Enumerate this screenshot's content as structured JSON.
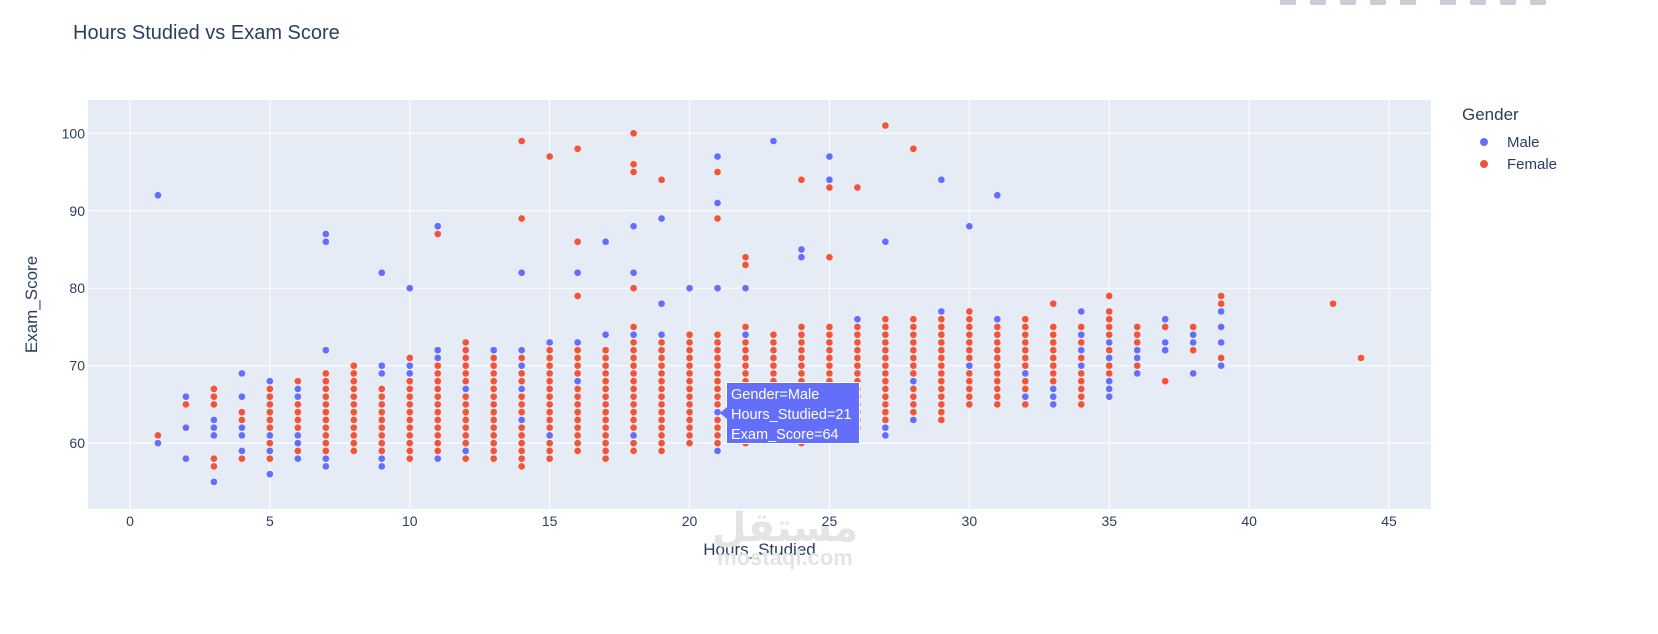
{
  "chart_data": {
    "type": "scatter",
    "title": "Hours Studied vs Exam Score",
    "xlabel": "Hours_Studied",
    "ylabel": "Exam_Score",
    "xlim": [
      -1.5,
      46.5
    ],
    "ylim": [
      51.5,
      104.3
    ],
    "xticks": [
      0,
      5,
      10,
      15,
      20,
      25,
      30,
      35,
      40,
      45
    ],
    "yticks": [
      60,
      70,
      80,
      90,
      100
    ],
    "grid": true,
    "legend_title": "Gender",
    "legend_position": "top-right",
    "series": [
      {
        "name": "Male",
        "color": "#636efa",
        "points": [
          [
            1,
            92
          ],
          [
            1,
            60
          ],
          [
            2,
            66
          ],
          [
            2,
            62
          ],
          [
            2,
            58
          ],
          [
            3,
            63
          ],
          [
            3,
            62
          ],
          [
            3,
            61
          ],
          [
            3,
            55
          ],
          [
            4,
            69
          ],
          [
            4,
            66
          ],
          [
            4,
            62
          ],
          [
            4,
            61
          ],
          [
            4,
            59
          ],
          [
            5,
            68
          ],
          [
            5,
            61
          ],
          [
            5,
            59
          ],
          [
            5,
            56
          ],
          [
            6,
            67
          ],
          [
            6,
            66
          ],
          [
            6,
            61
          ],
          [
            6,
            60
          ],
          [
            6,
            58
          ],
          [
            7,
            87
          ],
          [
            7,
            86
          ],
          [
            7,
            72
          ],
          [
            7,
            58
          ],
          [
            7,
            57
          ],
          [
            9,
            82
          ],
          [
            9,
            70
          ],
          [
            9,
            69
          ],
          [
            9,
            58
          ],
          [
            9,
            57
          ],
          [
            10,
            80
          ],
          [
            10,
            70
          ],
          [
            10,
            69
          ],
          [
            11,
            88
          ],
          [
            11,
            72
          ],
          [
            11,
            71
          ],
          [
            11,
            58
          ],
          [
            12,
            67
          ],
          [
            12,
            59
          ],
          [
            13,
            72
          ],
          [
            14,
            82
          ],
          [
            14,
            72
          ],
          [
            14,
            70
          ],
          [
            14,
            67
          ],
          [
            14,
            63
          ],
          [
            15,
            73
          ],
          [
            15,
            61
          ],
          [
            16,
            82
          ],
          [
            16,
            73
          ],
          [
            16,
            68
          ],
          [
            17,
            86
          ],
          [
            17,
            74
          ],
          [
            18,
            88
          ],
          [
            18,
            82
          ],
          [
            18,
            74
          ],
          [
            18,
            61
          ],
          [
            19,
            89
          ],
          [
            19,
            78
          ],
          [
            19,
            74
          ],
          [
            20,
            80
          ],
          [
            21,
            97
          ],
          [
            21,
            91
          ],
          [
            21,
            80
          ],
          [
            21,
            59
          ],
          [
            22,
            80
          ],
          [
            22,
            74
          ],
          [
            22,
            62
          ],
          [
            23,
            99
          ],
          [
            24,
            85
          ],
          [
            24,
            84
          ],
          [
            25,
            97
          ],
          [
            25,
            94
          ],
          [
            26,
            76
          ],
          [
            27,
            86
          ],
          [
            27,
            62
          ],
          [
            27,
            61
          ],
          [
            28,
            68
          ],
          [
            28,
            63
          ],
          [
            29,
            94
          ],
          [
            29,
            77
          ],
          [
            30,
            88
          ],
          [
            30,
            70
          ],
          [
            31,
            92
          ],
          [
            31,
            76
          ],
          [
            32,
            69
          ],
          [
            32,
            66
          ],
          [
            33,
            67
          ],
          [
            33,
            66
          ],
          [
            33,
            65
          ],
          [
            34,
            77
          ],
          [
            34,
            74
          ],
          [
            34,
            72
          ],
          [
            34,
            70
          ],
          [
            35,
            73
          ],
          [
            35,
            71
          ],
          [
            35,
            68
          ],
          [
            35,
            67
          ],
          [
            35,
            66
          ],
          [
            36,
            72
          ],
          [
            36,
            71
          ],
          [
            36,
            69
          ],
          [
            37,
            76
          ],
          [
            37,
            73
          ],
          [
            37,
            72
          ],
          [
            38,
            74
          ],
          [
            38,
            73
          ],
          [
            38,
            69
          ],
          [
            39,
            77
          ],
          [
            39,
            75
          ],
          [
            39,
            73
          ],
          [
            39,
            70
          ],
          [
            21,
            64
          ]
        ]
      },
      {
        "name": "Female",
        "color": "#ef553b",
        "points": [
          [
            1,
            61
          ],
          [
            2,
            65
          ],
          [
            3,
            67
          ],
          [
            3,
            66
          ],
          [
            3,
            65
          ],
          [
            3,
            58
          ],
          [
            3,
            57
          ],
          [
            4,
            64
          ],
          [
            4,
            63
          ],
          [
            4,
            58
          ],
          [
            14,
            99
          ],
          [
            14,
            89
          ],
          [
            15,
            97
          ],
          [
            16,
            98
          ],
          [
            16,
            86
          ],
          [
            16,
            79
          ],
          [
            18,
            100
          ],
          [
            18,
            96
          ],
          [
            18,
            95
          ],
          [
            18,
            80
          ],
          [
            19,
            94
          ],
          [
            21,
            95
          ],
          [
            21,
            89
          ],
          [
            22,
            84
          ],
          [
            22,
            83
          ],
          [
            24,
            94
          ],
          [
            25,
            93
          ],
          [
            25,
            84
          ],
          [
            26,
            93
          ],
          [
            27,
            101
          ],
          [
            28,
            98
          ],
          [
            33,
            78
          ],
          [
            35,
            79
          ],
          [
            37,
            68
          ],
          [
            39,
            79
          ],
          [
            39,
            78
          ],
          [
            39,
            71
          ],
          [
            43,
            78
          ],
          [
            44,
            71
          ],
          [
            7,
            69
          ],
          [
            7,
            68
          ],
          [
            8,
            70
          ],
          [
            8,
            59
          ],
          [
            9,
            67
          ],
          [
            9,
            66
          ],
          [
            10,
            71
          ],
          [
            11,
            87
          ],
          [
            12,
            73
          ],
          [
            34,
            65
          ],
          [
            16,
            59
          ],
          [
            17,
            58
          ]
        ],
        "columns": [
          {
            "x": 5,
            "y": [
              58,
              67
            ]
          },
          {
            "x": 6,
            "y": [
              58,
              68
            ]
          },
          {
            "x": 7,
            "y": [
              59,
              69
            ]
          },
          {
            "x": 8,
            "y": [
              59,
              70
            ]
          },
          {
            "x": 9,
            "y": [
              59,
              67
            ]
          },
          {
            "x": 10,
            "y": [
              58,
              71
            ]
          },
          {
            "x": 11,
            "y": [
              59,
              71
            ]
          },
          {
            "x": 12,
            "y": [
              58,
              73
            ]
          },
          {
            "x": 13,
            "y": [
              58,
              71
            ]
          },
          {
            "x": 14,
            "y": [
              57,
              71
            ]
          },
          {
            "x": 15,
            "y": [
              58,
              72
            ]
          },
          {
            "x": 16,
            "y": [
              59,
              72
            ]
          },
          {
            "x": 17,
            "y": [
              59,
              72
            ]
          },
          {
            "x": 18,
            "y": [
              59,
              75
            ]
          },
          {
            "x": 19,
            "y": [
              59,
              73
            ]
          },
          {
            "x": 20,
            "y": [
              60,
              74
            ]
          },
          {
            "x": 21,
            "y": [
              60,
              74
            ]
          },
          {
            "x": 22,
            "y": [
              60,
              75
            ]
          },
          {
            "x": 23,
            "y": [
              61,
              74
            ]
          },
          {
            "x": 24,
            "y": [
              60,
              75
            ]
          },
          {
            "x": 25,
            "y": [
              61,
              75
            ]
          },
          {
            "x": 26,
            "y": [
              62,
              75
            ]
          },
          {
            "x": 27,
            "y": [
              63,
              76
            ]
          },
          {
            "x": 28,
            "y": [
              64,
              76
            ]
          },
          {
            "x": 29,
            "y": [
              63,
              76
            ]
          },
          {
            "x": 30,
            "y": [
              65,
              77
            ]
          },
          {
            "x": 31,
            "y": [
              65,
              75
            ]
          },
          {
            "x": 32,
            "y": [
              65,
              76
            ]
          },
          {
            "x": 33,
            "y": [
              66,
              75
            ]
          },
          {
            "x": 34,
            "y": [
              66,
              75
            ]
          },
          {
            "x": 35,
            "y": [
              69,
              77
            ]
          },
          {
            "x": 36,
            "y": [
              70,
              75
            ]
          },
          {
            "x": 37,
            "y": [
              75,
              75
            ]
          },
          {
            "x": 38,
            "y": [
              72,
              75
            ]
          }
        ]
      }
    ],
    "hover": {
      "line1": "Gender=Male",
      "line2": "Hours_Studied=21",
      "line3": "Exam_Score=64"
    }
  },
  "watermark": {
    "logo": "مستقل",
    "url": "mostaql.com"
  }
}
